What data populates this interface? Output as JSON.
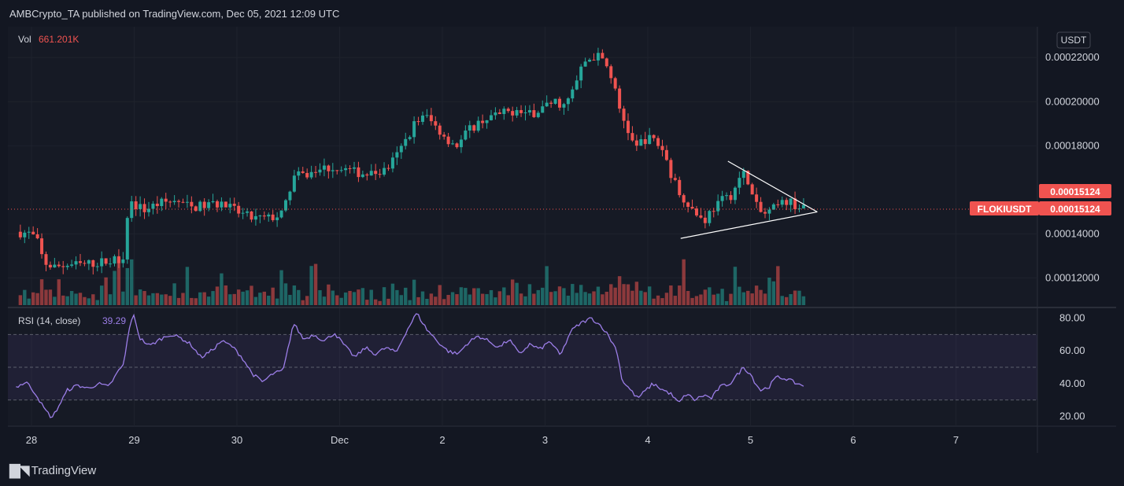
{
  "header": {
    "published": "AMBCrypto_TA published on TradingView.com, Dec 05, 2021 12:09 UTC"
  },
  "footer": {
    "brand": "TradingView"
  },
  "chart_data": [
    {
      "type": "candlestick",
      "symbol": "FLOKIUSDT",
      "currency": "USDT",
      "last_price": "0.00015124",
      "last_price_value": 0.00015124,
      "volume_label": "Vol",
      "volume_value": "661.201K",
      "ylim": [
        0.000107,
        0.000234
      ],
      "y_ticks": [
        {
          "value": 0.00022,
          "label": "0.00022000"
        },
        {
          "value": 0.0002,
          "label": "0.00020000"
        },
        {
          "value": 0.00018,
          "label": "0.00018000"
        },
        {
          "value": 0.00014,
          "label": "0.00014000"
        },
        {
          "value": 0.00012,
          "label": "0.00012000"
        }
      ],
      "x_ticks": [
        {
          "label": "28",
          "day": 0
        },
        {
          "label": "29",
          "day": 1
        },
        {
          "label": "30",
          "day": 2
        },
        {
          "label": "Dec",
          "day": 3
        },
        {
          "label": "2",
          "day": 4
        },
        {
          "label": "3",
          "day": 5
        },
        {
          "label": "4",
          "day": 6
        },
        {
          "label": "5",
          "day": 7
        },
        {
          "label": "6",
          "day": 8
        },
        {
          "label": "7",
          "day": 9
        }
      ],
      "price_path": [
        [
          -0.15,
          0.000141
        ],
        [
          0.0,
          0.00014
        ],
        [
          0.06,
          0.000136
        ],
        [
          0.12,
          0.000127
        ],
        [
          0.22,
          0.000125
        ],
        [
          0.35,
          0.000126
        ],
        [
          0.5,
          0.000126
        ],
        [
          0.65,
          0.000127
        ],
        [
          0.8,
          0.000128
        ],
        [
          0.9,
          0.00013
        ],
        [
          0.93,
          0.000148
        ],
        [
          0.97,
          0.000154
        ],
        [
          1.1,
          0.000151
        ],
        [
          1.25,
          0.000154
        ],
        [
          1.4,
          0.000155
        ],
        [
          1.55,
          0.000152
        ],
        [
          1.7,
          0.000153
        ],
        [
          1.85,
          0.000154
        ],
        [
          2.0,
          0.00015
        ],
        [
          2.15,
          0.000147
        ],
        [
          2.3,
          0.000147
        ],
        [
          2.45,
          0.000149
        ],
        [
          2.5,
          0.000158
        ],
        [
          2.55,
          0.000166
        ],
        [
          2.7,
          0.000167
        ],
        [
          2.85,
          0.00017
        ],
        [
          3.0,
          0.00017
        ],
        [
          3.15,
          0.000168
        ],
        [
          3.3,
          0.000167
        ],
        [
          3.45,
          0.000169
        ],
        [
          3.55,
          0.000175
        ],
        [
          3.65,
          0.000183
        ],
        [
          3.75,
          0.000192
        ],
        [
          3.85,
          0.000193
        ],
        [
          3.95,
          0.000188
        ],
        [
          4.05,
          0.000183
        ],
        [
          4.15,
          0.00018
        ],
        [
          4.25,
          0.000187
        ],
        [
          4.4,
          0.000192
        ],
        [
          4.55,
          0.000194
        ],
        [
          4.7,
          0.000196
        ],
        [
          4.85,
          0.000194
        ],
        [
          5.0,
          0.000198
        ],
        [
          5.1,
          0.0002
        ],
        [
          5.2,
          0.000198
        ],
        [
          5.28,
          0.000206
        ],
        [
          5.38,
          0.000218
        ],
        [
          5.5,
          0.000221
        ],
        [
          5.58,
          0.000218
        ],
        [
          5.65,
          0.000211
        ],
        [
          5.72,
          0.000197
        ],
        [
          5.8,
          0.000188
        ],
        [
          5.88,
          0.000178
        ],
        [
          5.95,
          0.000183
        ],
        [
          6.05,
          0.000183
        ],
        [
          6.15,
          0.000178
        ],
        [
          6.22,
          0.000168
        ],
        [
          6.3,
          0.000159
        ],
        [
          6.38,
          0.000155
        ],
        [
          6.45,
          0.00015
        ],
        [
          6.55,
          0.000146
        ],
        [
          6.62,
          0.000151
        ],
        [
          6.72,
          0.000155
        ],
        [
          6.82,
          0.000158
        ],
        [
          6.9,
          0.000166
        ],
        [
          6.96,
          0.000168
        ],
        [
          7.0,
          0.000159
        ],
        [
          7.08,
          0.00015
        ],
        [
          7.15,
          0.000149
        ],
        [
          7.25,
          0.000152
        ],
        [
          7.35,
          0.000155
        ],
        [
          7.45,
          0.000153
        ],
        [
          7.52,
          0.000151
        ]
      ],
      "triangle_upper": [
        [
          6.78,
          0.000173
        ],
        [
          7.65,
          0.00015
        ]
      ],
      "triangle_lower": [
        [
          6.32,
          0.000138
        ],
        [
          7.65,
          0.00015
        ]
      ]
    },
    {
      "type": "line",
      "name": "RSI (14, close)",
      "label": "RSI (14, close)",
      "value": "39.29",
      "ylim": [
        14,
        86
      ],
      "bands": {
        "upper": 70,
        "middle": 50,
        "lower": 30
      },
      "y_ticks": [
        {
          "value": 80,
          "label": "80.00"
        },
        {
          "value": 60,
          "label": "60.00"
        },
        {
          "value": 40,
          "label": "40.00"
        },
        {
          "value": 20,
          "label": "20.00"
        }
      ],
      "path": [
        [
          -0.15,
          38
        ],
        [
          -0.05,
          41
        ],
        [
          0.05,
          33
        ],
        [
          0.12,
          25
        ],
        [
          0.2,
          19
        ],
        [
          0.28,
          28
        ],
        [
          0.35,
          36
        ],
        [
          0.45,
          39
        ],
        [
          0.55,
          37
        ],
        [
          0.65,
          40
        ],
        [
          0.75,
          38
        ],
        [
          0.85,
          48
        ],
        [
          0.9,
          52
        ],
        [
          0.95,
          74
        ],
        [
          1.0,
          82
        ],
        [
          1.05,
          68
        ],
        [
          1.15,
          63
        ],
        [
          1.25,
          67
        ],
        [
          1.35,
          70
        ],
        [
          1.45,
          68
        ],
        [
          1.55,
          64
        ],
        [
          1.65,
          56
        ],
        [
          1.75,
          60
        ],
        [
          1.85,
          66
        ],
        [
          1.95,
          63
        ],
        [
          2.05,
          56
        ],
        [
          2.15,
          46
        ],
        [
          2.25,
          41
        ],
        [
          2.35,
          46
        ],
        [
          2.45,
          48
        ],
        [
          2.5,
          62
        ],
        [
          2.55,
          77
        ],
        [
          2.65,
          67
        ],
        [
          2.75,
          70
        ],
        [
          2.85,
          66
        ],
        [
          2.95,
          71
        ],
        [
          3.05,
          63
        ],
        [
          3.15,
          56
        ],
        [
          3.25,
          62
        ],
        [
          3.35,
          58
        ],
        [
          3.45,
          62
        ],
        [
          3.55,
          59
        ],
        [
          3.65,
          72
        ],
        [
          3.75,
          83
        ],
        [
          3.85,
          73
        ],
        [
          3.95,
          66
        ],
        [
          4.05,
          60
        ],
        [
          4.15,
          58
        ],
        [
          4.25,
          65
        ],
        [
          4.35,
          69
        ],
        [
          4.45,
          66
        ],
        [
          4.55,
          62
        ],
        [
          4.65,
          67
        ],
        [
          4.75,
          58
        ],
        [
          4.85,
          64
        ],
        [
          4.95,
          61
        ],
        [
          5.05,
          66
        ],
        [
          5.15,
          57
        ],
        [
          5.25,
          72
        ],
        [
          5.35,
          77
        ],
        [
          5.45,
          80
        ],
        [
          5.55,
          75
        ],
        [
          5.62,
          69
        ],
        [
          5.7,
          60
        ],
        [
          5.75,
          42
        ],
        [
          5.82,
          37
        ],
        [
          5.9,
          31
        ],
        [
          5.95,
          34
        ],
        [
          6.05,
          40
        ],
        [
          6.15,
          36
        ],
        [
          6.22,
          34
        ],
        [
          6.3,
          28
        ],
        [
          6.38,
          34
        ],
        [
          6.45,
          30
        ],
        [
          6.55,
          33
        ],
        [
          6.62,
          31
        ],
        [
          6.7,
          38
        ],
        [
          6.8,
          40
        ],
        [
          6.88,
          46
        ],
        [
          6.93,
          50
        ],
        [
          7.0,
          46
        ],
        [
          7.05,
          40
        ],
        [
          7.1,
          36
        ],
        [
          7.18,
          38
        ],
        [
          7.25,
          44
        ],
        [
          7.35,
          43
        ],
        [
          7.45,
          40
        ],
        [
          7.52,
          39
        ]
      ]
    }
  ]
}
